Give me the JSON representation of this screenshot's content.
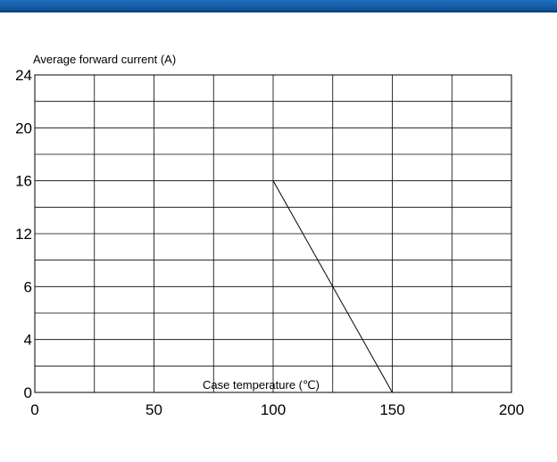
{
  "header": {
    "accent": "#1560b0"
  },
  "chart_data": {
    "type": "line",
    "title": "",
    "ylabel": "Average forward current (A)",
    "xlabel": "Case temperature (℃)",
    "x_ticks": [
      "0",
      "50",
      "100",
      "150",
      "200"
    ],
    "xlim": [
      0,
      200
    ],
    "y_ticks": [
      "0",
      "4",
      "6",
      "12",
      "16",
      "20",
      "24"
    ],
    "grid": true,
    "series": [
      {
        "x": [
          100,
          150
        ],
        "y": [
          16,
          0
        ]
      }
    ]
  }
}
